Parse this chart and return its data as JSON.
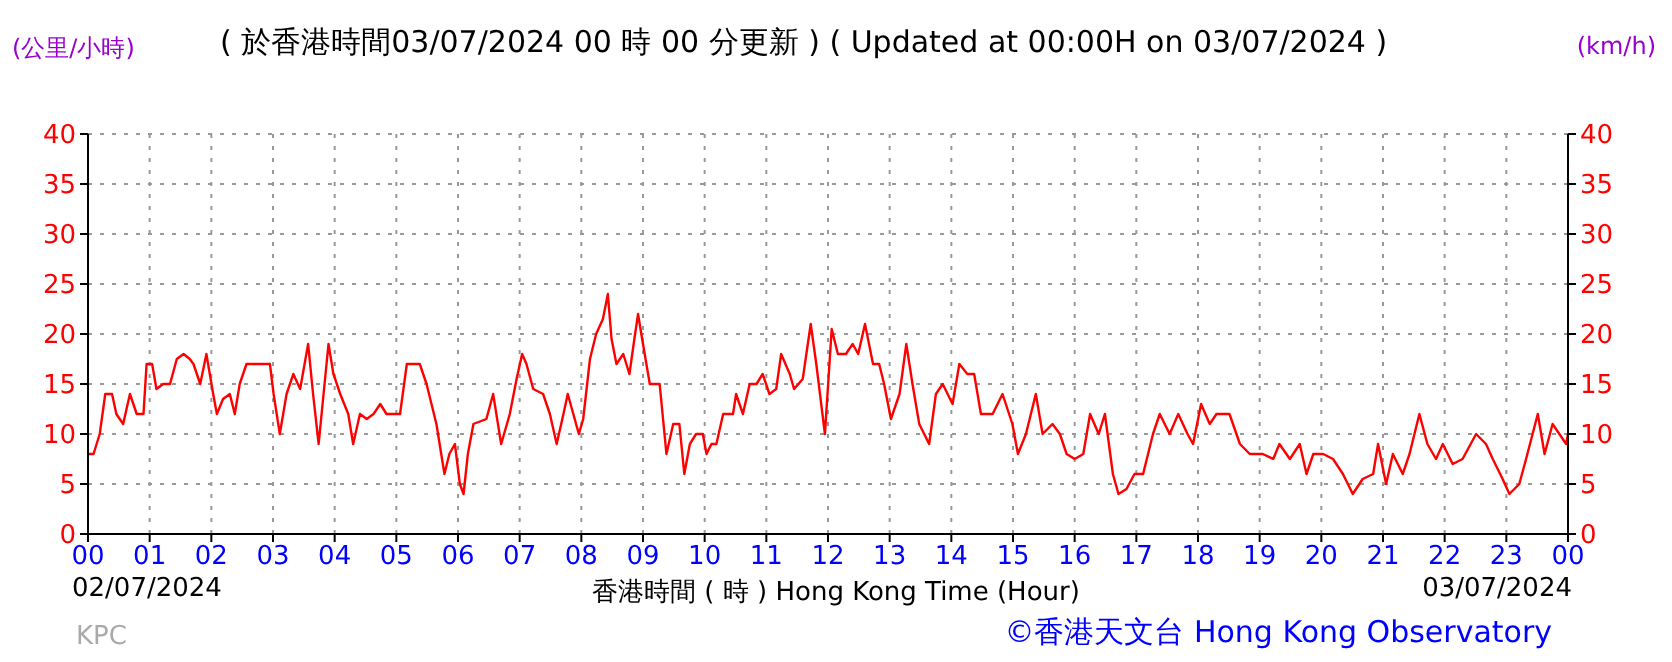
{
  "chart_data": {
    "type": "line",
    "title": "( 於香港時間03/07/2024 00 時 00 分更新 ) ( Updated at 00:00H on 03/07/2024 )",
    "xlabel": "香港時間 ( 時 )  Hong Kong Time (Hour)",
    "ylabel": "(公里/小時)",
    "y2label": "(km/h)",
    "annotations": [
      "02/07/2024",
      "03/07/2024",
      "KPC",
      "©香港天文台 Hong Kong Observatory"
    ],
    "color": "#ff0000",
    "x": [
      0,
      0.09,
      0.19,
      0.28,
      0.39,
      0.46,
      0.57,
      0.68,
      0.79,
      0.9,
      0.95,
      1.04,
      1.11,
      1.22,
      1.33,
      1.44,
      1.55,
      1.65,
      1.71,
      1.82,
      1.92,
      2.03,
      2.09,
      2.19,
      2.3,
      2.38,
      2.46,
      2.57,
      2.79,
      2.95,
      3.01,
      3.11,
      3.22,
      3.33,
      3.44,
      3.57,
      3.65,
      3.74,
      3.82,
      3.9,
      3.98,
      4.09,
      4.22,
      4.3,
      4.41,
      4.52,
      4.63,
      4.74,
      4.84,
      5.06,
      5.17,
      5.28,
      5.38,
      5.49,
      5.65,
      5.78,
      5.86,
      5.95,
      6.03,
      6.09,
      6.16,
      6.25,
      6.46,
      6.57,
      6.7,
      6.84,
      6.95,
      7.04,
      7.11,
      7.22,
      7.38,
      7.49,
      7.6,
      7.71,
      7.78,
      7.87,
      7.96,
      8.03,
      8.14,
      8.24,
      8.35,
      8.43,
      8.49,
      8.57,
      8.68,
      8.78,
      8.86,
      8.92,
      9.0,
      9.11,
      9.27,
      9.38,
      9.49,
      9.59,
      9.67,
      9.76,
      9.86,
      9.97,
      10.03,
      10.11,
      10.19,
      10.3,
      10.46,
      10.51,
      10.62,
      10.73,
      10.84,
      10.94,
      11.05,
      11.16,
      11.24,
      11.38,
      11.45,
      11.59,
      11.72,
      11.81,
      11.95,
      12.06,
      12.16,
      12.29,
      12.4,
      12.49,
      12.6,
      12.73,
      12.83,
      12.91,
      13.02,
      13.16,
      13.27,
      13.37,
      13.48,
      13.64,
      13.75,
      13.86,
      14.02,
      14.13,
      14.26,
      14.37,
      14.48,
      14.67,
      14.83,
      14.99,
      15.08,
      15.21,
      15.37,
      15.48,
      15.64,
      15.76,
      15.87,
      16.0,
      16.14,
      16.25,
      16.39,
      16.49,
      16.62,
      16.71,
      16.84,
      16.97,
      17.11,
      17.27,
      17.38,
      17.54,
      17.68,
      17.83,
      17.92,
      18.05,
      18.19,
      18.3,
      18.51,
      18.68,
      18.84,
      19.05,
      19.22,
      19.32,
      19.49,
      19.65,
      19.76,
      19.87,
      20.03,
      20.19,
      20.35,
      20.51,
      20.67,
      20.84,
      20.92,
      21.05,
      21.16,
      21.32,
      21.43,
      21.59,
      21.72,
      21.86,
      21.97,
      22.13,
      22.29,
      22.51,
      22.67,
      22.78,
      22.94,
      23.05,
      23.21,
      23.32,
      23.51,
      23.62,
      23.75,
      23.86,
      23.97,
      24
    ],
    "values": [
      8,
      8,
      10,
      14,
      14,
      12,
      11,
      14,
      12,
      12,
      17,
      17,
      14.5,
      15,
      15,
      17.5,
      18,
      17.5,
      17,
      15,
      18,
      14,
      12,
      13.5,
      14,
      12,
      15,
      17,
      17,
      17,
      14,
      10,
      14,
      16,
      14.5,
      19,
      14,
      9,
      14,
      19,
      16,
      14,
      12,
      9,
      12,
      11.5,
      12,
      13,
      12,
      12,
      17,
      17,
      17,
      15,
      11,
      6,
      8,
      9,
      5,
      4,
      8,
      11,
      11.5,
      14,
      9,
      12,
      15.5,
      18,
      17,
      14.5,
      14,
      12,
      9,
      12,
      14,
      12,
      10,
      11.5,
      17.5,
      20,
      21.5,
      24,
      19.5,
      17,
      18,
      16,
      19.5,
      22,
      19,
      15,
      15,
      8,
      11,
      11,
      6,
      9,
      10,
      10,
      8,
      9,
      9,
      12,
      12,
      14,
      12,
      15,
      15,
      16,
      14,
      14.5,
      18,
      16,
      14.5,
      15.5,
      21,
      17,
      10,
      20.5,
      18,
      18,
      19,
      18,
      21,
      17,
      17,
      15,
      11.5,
      14,
      19,
      15,
      11,
      9,
      14,
      15,
      13,
      17,
      16,
      16,
      12,
      12,
      14,
      11,
      8,
      10,
      14,
      10,
      11,
      10,
      8,
      7.5,
      8,
      12,
      10,
      12,
      6,
      4,
      4.5,
      6,
      6,
      10,
      12,
      10,
      12,
      10,
      9,
      13,
      11,
      12,
      12,
      9,
      8,
      8,
      7.5,
      9,
      7.5,
      9,
      6,
      8,
      8,
      7.5,
      6,
      4,
      5.5,
      6,
      9,
      5,
      8,
      6,
      8,
      12,
      9,
      7.5,
      9,
      7,
      7.5,
      10,
      9,
      7.5,
      5.5,
      4,
      5,
      7.5,
      12,
      8,
      11,
      10,
      9,
      10
    ],
    "xlim": [
      0,
      24
    ],
    "xticks": [
      {
        "value": 0,
        "label": "00"
      },
      {
        "value": 1,
        "label": "01"
      },
      {
        "value": 2,
        "label": "02"
      },
      {
        "value": 3,
        "label": "03"
      },
      {
        "value": 4,
        "label": "04"
      },
      {
        "value": 5,
        "label": "05"
      },
      {
        "value": 6,
        "label": "06"
      },
      {
        "value": 7,
        "label": "07"
      },
      {
        "value": 8,
        "label": "08"
      },
      {
        "value": 9,
        "label": "09"
      },
      {
        "value": 10,
        "label": "10"
      },
      {
        "value": 11,
        "label": "11"
      },
      {
        "value": 12,
        "label": "12"
      },
      {
        "value": 13,
        "label": "13"
      },
      {
        "value": 14,
        "label": "14"
      },
      {
        "value": 15,
        "label": "15"
      },
      {
        "value": 16,
        "label": "16"
      },
      {
        "value": 17,
        "label": "17"
      },
      {
        "value": 18,
        "label": "18"
      },
      {
        "value": 19,
        "label": "19"
      },
      {
        "value": 20,
        "label": "20"
      },
      {
        "value": 21,
        "label": "21"
      },
      {
        "value": 22,
        "label": "22"
      },
      {
        "value": 23,
        "label": "23"
      },
      {
        "value": 24,
        "label": "00"
      }
    ],
    "ylim": [
      0,
      40
    ],
    "yticks": [
      0,
      5,
      10,
      15,
      20,
      25,
      30,
      35,
      40
    ],
    "y2lim": [
      0,
      40
    ],
    "y2ticks": [
      0,
      5,
      10,
      15,
      20,
      25,
      30,
      35,
      40
    ],
    "grid": true,
    "marker": "none",
    "line_style": "solid"
  }
}
